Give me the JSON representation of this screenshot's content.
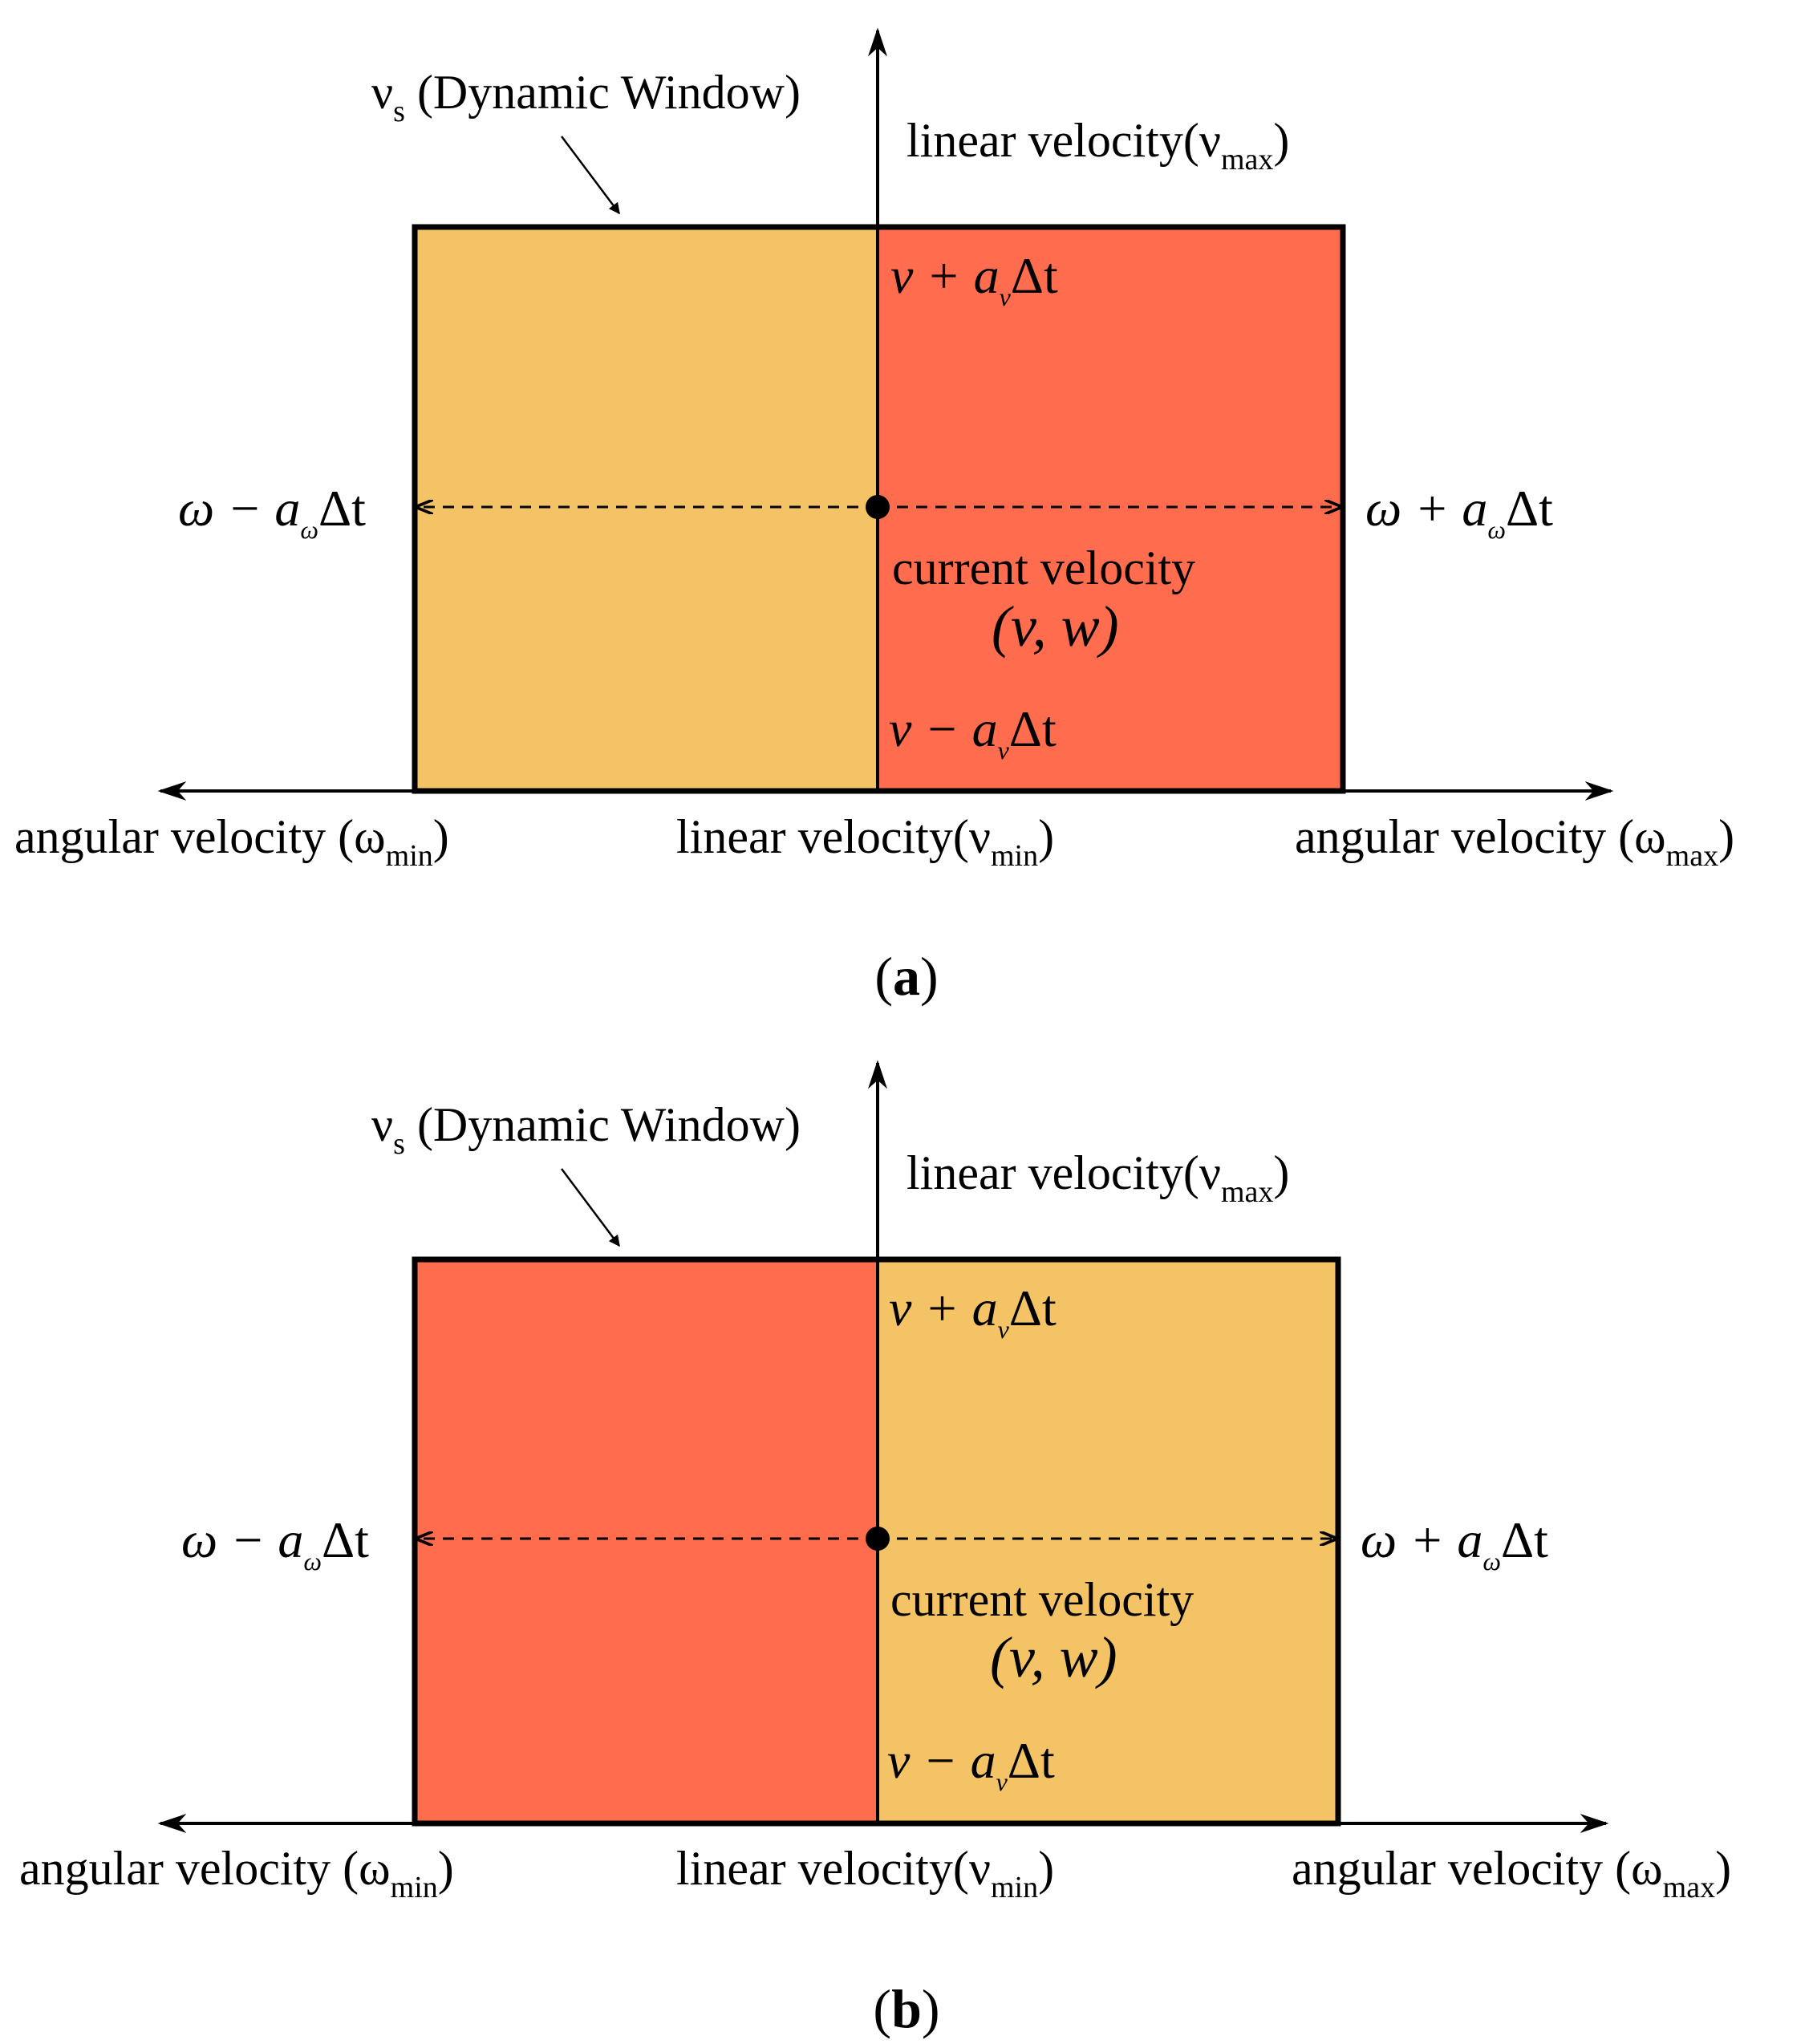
{
  "colors": {
    "highlight": "#FF6D4E",
    "window": "#F4C365",
    "stroke": "#000000"
  },
  "panels": [
    {
      "caption_open": "(",
      "caption_letter": "a",
      "caption_close": ")",
      "highlight_side": "right",
      "window_label_main": "ν",
      "window_label_sub": "s",
      "window_label_rest": " (Dynamic Window)",
      "linear_max_main": "linear velocity(ν",
      "linear_max_sub": "max",
      "linear_max_close": ")",
      "linear_min_main": "linear velocity(ν",
      "linear_min_sub": "min",
      "linear_min_close": ")",
      "angular_min_main": "angular velocity (ω",
      "angular_min_sub": "min",
      "angular_min_close": ")",
      "angular_max_main": "angular velocity (ω",
      "angular_max_sub": "max",
      "angular_max_close": ")",
      "v_plus_pre": "v + a",
      "v_plus_sub": "v",
      "v_plus_post": "Δt",
      "v_minus_pre": "v − a",
      "v_minus_sub": "v",
      "v_minus_post": "Δt",
      "w_minus_pre": "ω − a",
      "w_minus_sub": "ω",
      "w_minus_post": "Δt",
      "w_plus_pre": "ω + a",
      "w_plus_sub": "ω",
      "w_plus_post": "Δt",
      "current_label": "current velocity",
      "current_value": "(v, w)"
    },
    {
      "caption_open": "(",
      "caption_letter": "b",
      "caption_close": ")",
      "highlight_side": "left",
      "window_label_main": "ν",
      "window_label_sub": "s",
      "window_label_rest": " (Dynamic Window)",
      "linear_max_main": "linear velocity(ν",
      "linear_max_sub": "max",
      "linear_max_close": ")",
      "linear_min_main": "linear velocity(ν",
      "linear_min_sub": "min",
      "linear_min_close": ")",
      "angular_min_main": "angular velocity (ω",
      "angular_min_sub": "min",
      "angular_min_close": ")",
      "angular_max_main": "angular velocity (ω",
      "angular_max_sub": "max",
      "angular_max_close": ")",
      "v_plus_pre": "v + a",
      "v_plus_sub": "v",
      "v_plus_post": "Δt",
      "v_minus_pre": "v − a",
      "v_minus_sub": "v",
      "v_minus_post": "Δt",
      "w_minus_pre": "ω − a",
      "w_minus_sub": "ω",
      "w_minus_post": "Δt",
      "w_plus_pre": "ω + a",
      "w_plus_sub": "ω",
      "w_plus_post": "Δt",
      "current_label": "current velocity",
      "current_value": "(v, w)"
    }
  ]
}
